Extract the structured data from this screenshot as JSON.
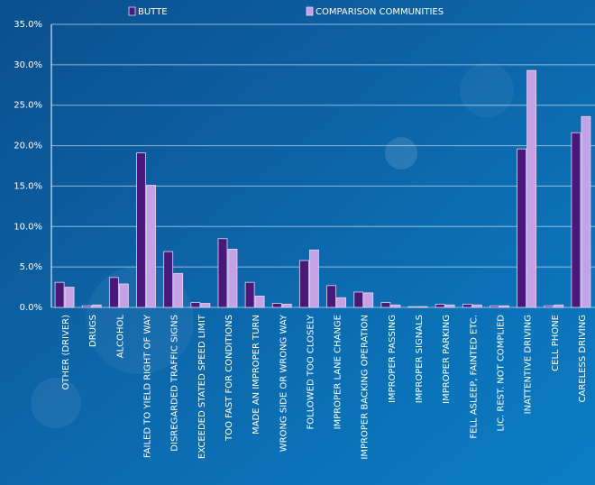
{
  "chart_data": {
    "type": "bar",
    "categories": [
      "OTHER (DRIVER)",
      "DRUGS",
      "ALCOHOL",
      "FAILED TO YIELD RIGHT OF WAY",
      "DISREGARDED TRAFFIC SIGNS",
      "EXCEEDED STATED SPEED LIMIT",
      "TOO FAST FOR CONDITIONS",
      "MADE AN IMPROPER TURN",
      "WRONG SIDE OR WRONG WAY",
      "FOLLOWED TOO CLOSELY",
      "IMPROPER LANE CHANGE",
      "IMPROPER BACKING OPERATION",
      "IMPROPER PASSING",
      "IMPROPER SIGNALS",
      "IMPROPER PARKING",
      "FELL ASLEEP, FAINTED ETC.",
      "LIC. REST. NOT COMPLIED",
      "INATTENTIVE DRIVING",
      "CELL PHONE",
      "CARELESS DRIVING"
    ],
    "series": [
      {
        "name": "BUTTE",
        "color": "#4a1878",
        "values": [
          3.1,
          0.2,
          3.7,
          19.1,
          6.9,
          0.6,
          8.5,
          3.1,
          0.5,
          5.8,
          2.7,
          1.9,
          0.6,
          0.1,
          0.4,
          0.4,
          0.2,
          19.6,
          0.2,
          21.6
        ]
      },
      {
        "name": "COMPARISON COMMUNITIES",
        "color": "#c7a1e6",
        "values": [
          2.5,
          0.3,
          2.9,
          15.1,
          4.2,
          0.5,
          7.2,
          1.4,
          0.4,
          7.1,
          1.2,
          1.8,
          0.3,
          0.1,
          0.3,
          0.3,
          0.2,
          29.3,
          0.3,
          23.6
        ]
      }
    ],
    "ylim": [
      0,
      35
    ],
    "yticks": [
      {
        "value": 0,
        "label": "0.0%"
      },
      {
        "value": 5,
        "label": "5.0%"
      },
      {
        "value": 10,
        "label": "10.0%"
      },
      {
        "value": 15,
        "label": "15.0%"
      },
      {
        "value": 20,
        "label": "20.0%"
      },
      {
        "value": 25,
        "label": "25.0%"
      },
      {
        "value": 30,
        "label": "30.0%"
      },
      {
        "value": 35,
        "label": "35.0%"
      }
    ],
    "grid": true,
    "legend": "top"
  }
}
